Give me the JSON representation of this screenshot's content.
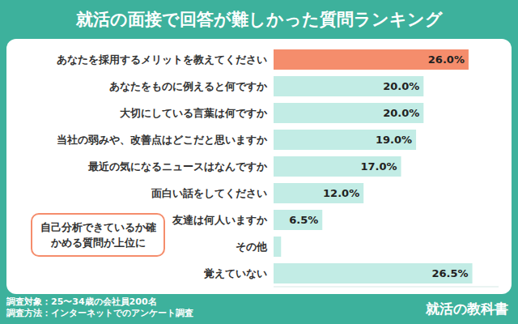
{
  "chart_data": {
    "type": "bar",
    "title": "就活の面接で回答が難しかった質問ランキング",
    "orientation": "horizontal",
    "categories": [
      "あなたを採用するメリットを教えてください",
      "あなたをものに例えると何ですか",
      "大切にしている言葉は何ですか",
      "当社の弱みや、改善点はどこだと思いますか",
      "最近の気になるニュースはなんですか",
      "面白い話をしてください",
      "友達は何人いますか",
      "その他",
      "覚えていない"
    ],
    "values": [
      26.0,
      20.0,
      20.0,
      19.0,
      17.0,
      12.0,
      6.5,
      1.0,
      26.5
    ],
    "value_labels": [
      "26.0%",
      "20.0%",
      "20.0%",
      "19.0%",
      "17.0%",
      "12.0%",
      "6.5%",
      null,
      "26.5%"
    ],
    "colors": [
      "#f58d6c",
      "#c2ece5",
      "#c2ece5",
      "#c2ece5",
      "#c2ece5",
      "#c2ece5",
      "#c2ece5",
      "#c2ece5",
      "#c2ece5"
    ],
    "xlim": [
      0,
      30
    ],
    "data_labels": true,
    "tick_labels": "y",
    "grid": false,
    "annotation": "自己分析できているか確かめる質問が上位に",
    "notes": [
      "調査対象：25〜34歳の会社員200名",
      "調査方法：インターネットでのアンケート調査"
    ],
    "source": "就活の教科書"
  }
}
